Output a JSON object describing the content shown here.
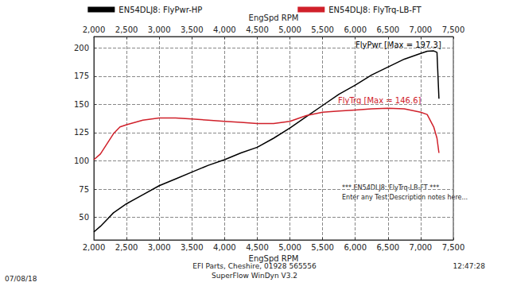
{
  "chart_data": {
    "type": "line",
    "x_label": "EngSpd RPM",
    "x": [
      2000,
      2100,
      2200,
      2300,
      2400,
      2500,
      2750,
      3000,
      3250,
      3500,
      3750,
      4000,
      4250,
      4500,
      4750,
      5000,
      5250,
      5500,
      5750,
      6000,
      6250,
      6500,
      6750,
      7000,
      7100,
      7200,
      7250,
      7280
    ],
    "series": [
      {
        "name": "EN54DLJ8: FlyPwr-HP",
        "color": "#000000",
        "values": [
          37,
          42,
          48,
          54,
          58,
          62,
          70,
          78,
          84,
          90,
          96,
          101,
          107,
          112,
          120,
          129,
          139,
          149,
          159,
          167,
          176,
          183,
          190,
          195,
          197,
          197.3,
          196,
          155
        ]
      },
      {
        "name": "EN54DLJ8: FlyTrq-LB-FT",
        "color": "#d0202a",
        "values": [
          101,
          106,
          115,
          124,
          130,
          132,
          136,
          138,
          138,
          137,
          136,
          135,
          134,
          133,
          133,
          135,
          140,
          143,
          144,
          145,
          146,
          146.6,
          146,
          143,
          141,
          130,
          120,
          107
        ]
      }
    ],
    "xlim": [
      2000,
      7500
    ],
    "xticks": [
      2000,
      2500,
      3000,
      3500,
      4000,
      4500,
      5000,
      5500,
      6000,
      6500,
      7000,
      7500
    ],
    "ylim": [
      30,
      210
    ],
    "yticks": [
      50,
      75,
      100,
      125,
      150,
      175,
      200
    ],
    "grid": true,
    "legend": "top",
    "annotations": [
      "FlyPwr [Max = 197.3]",
      "FlyTrq [Max = 146.6]"
    ],
    "notes": [
      "*** EN54DLJ8: FlyTrq-LB-FT ***",
      "Enter any Test Description notes here..."
    ],
    "footer_lines": [
      "EFI Parts, Cheshire, 01928 565556",
      "SuperFlow WinDyn V3.2"
    ],
    "date": "07/08/18",
    "time": "12:47:28"
  }
}
